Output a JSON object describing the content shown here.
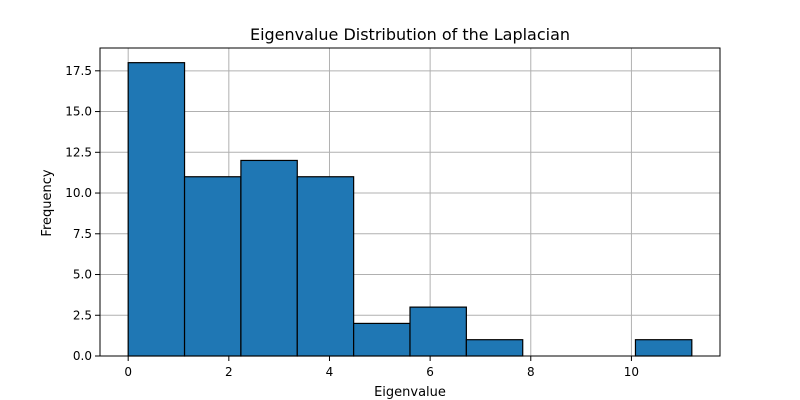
{
  "chart_data": {
    "type": "bar",
    "title": "Eigenvalue Distribution of the Laplacian",
    "xlabel": "Eigenvalue",
    "ylabel": "Frequency",
    "bin_edges": [
      0.0,
      1.12,
      2.24,
      3.36,
      4.48,
      5.6,
      6.72,
      7.84,
      8.96,
      10.08,
      11.2
    ],
    "values": [
      18,
      11,
      12,
      11,
      2,
      3,
      1,
      0,
      0,
      1
    ],
    "xlim": [
      -0.56,
      11.76
    ],
    "ylim": [
      0,
      18.9
    ],
    "xticks": [
      0,
      2,
      4,
      6,
      8,
      10
    ],
    "xtick_labels": [
      "0",
      "2",
      "4",
      "6",
      "8",
      "10"
    ],
    "yticks": [
      0.0,
      2.5,
      5.0,
      7.5,
      10.0,
      12.5,
      15.0,
      17.5
    ],
    "ytick_labels": [
      "0.0",
      "2.5",
      "5.0",
      "7.5",
      "10.0",
      "12.5",
      "15.0",
      "17.5"
    ],
    "grid": true,
    "bar_color": "#1f77b4",
    "edge_color": "#000000"
  }
}
